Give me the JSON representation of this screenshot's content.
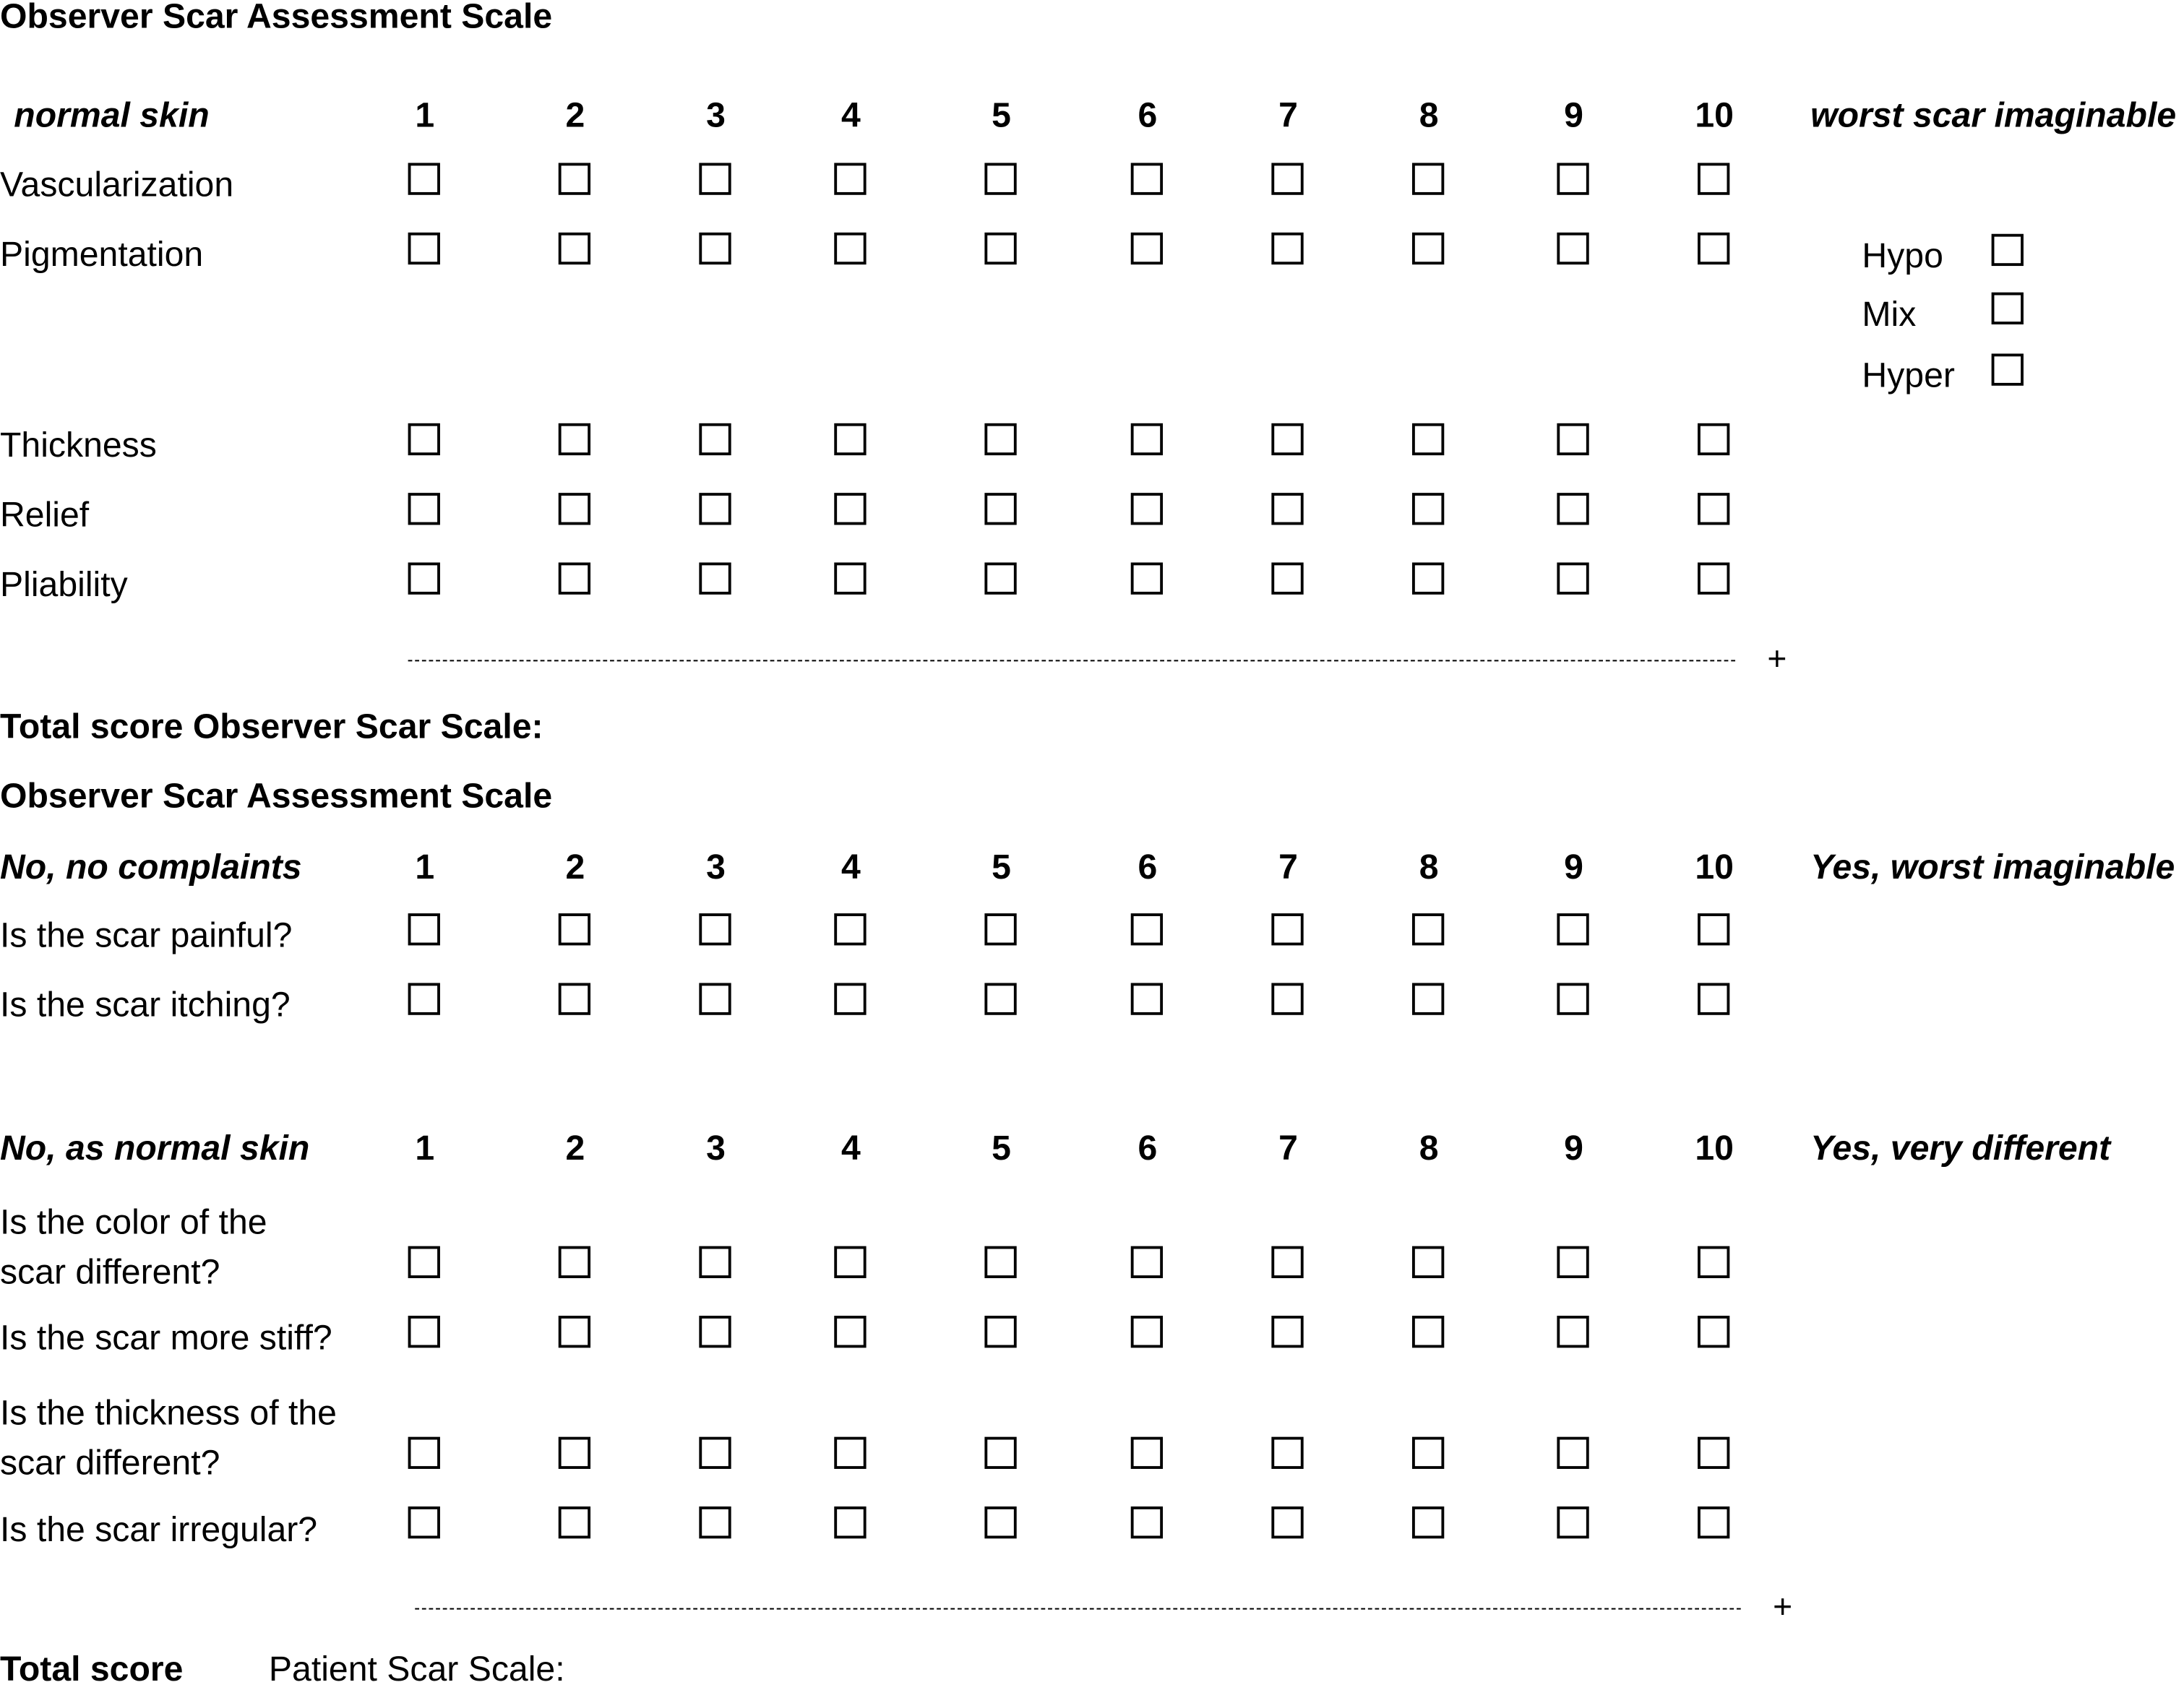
{
  "observer": {
    "title": "Observer Scar Assessment Scale",
    "header": {
      "left": "normal skin",
      "right": "worst scar imaginable"
    },
    "scale": [
      "1",
      "2",
      "3",
      "4",
      "5",
      "6",
      "7",
      "8",
      "9",
      "10"
    ],
    "rows": [
      {
        "label": "Vascularization"
      },
      {
        "label": "Pigmentation"
      },
      {
        "label": "Thickness"
      },
      {
        "label": "Relief"
      },
      {
        "label": "Pliability"
      }
    ],
    "pigmentation_options": [
      "Hypo",
      "Mix",
      "Hyper"
    ],
    "sum_sign": "+",
    "total_label": "Total score Observer Scar Scale:"
  },
  "patient": {
    "title": "Observer Scar Assessment Scale",
    "groups": [
      {
        "left": "No, no complaints",
        "right": "Yes, worst imaginable",
        "rows": [
          {
            "label": "Is the scar painful?"
          },
          {
            "label": "Is the scar itching?"
          }
        ]
      },
      {
        "left": "No, as normal skin",
        "right": "Yes, very different",
        "rows": [
          {
            "label": "Is the color of the\nscar different?"
          },
          {
            "label": "Is the scar more stiff?"
          },
          {
            "label": "Is the thickness of the\nscar different?"
          },
          {
            "label": "Is the scar irregular?"
          }
        ]
      }
    ],
    "sum_sign": "+",
    "total_label": "Total score",
    "total_label_suffix": "Patient Scar Scale:"
  }
}
